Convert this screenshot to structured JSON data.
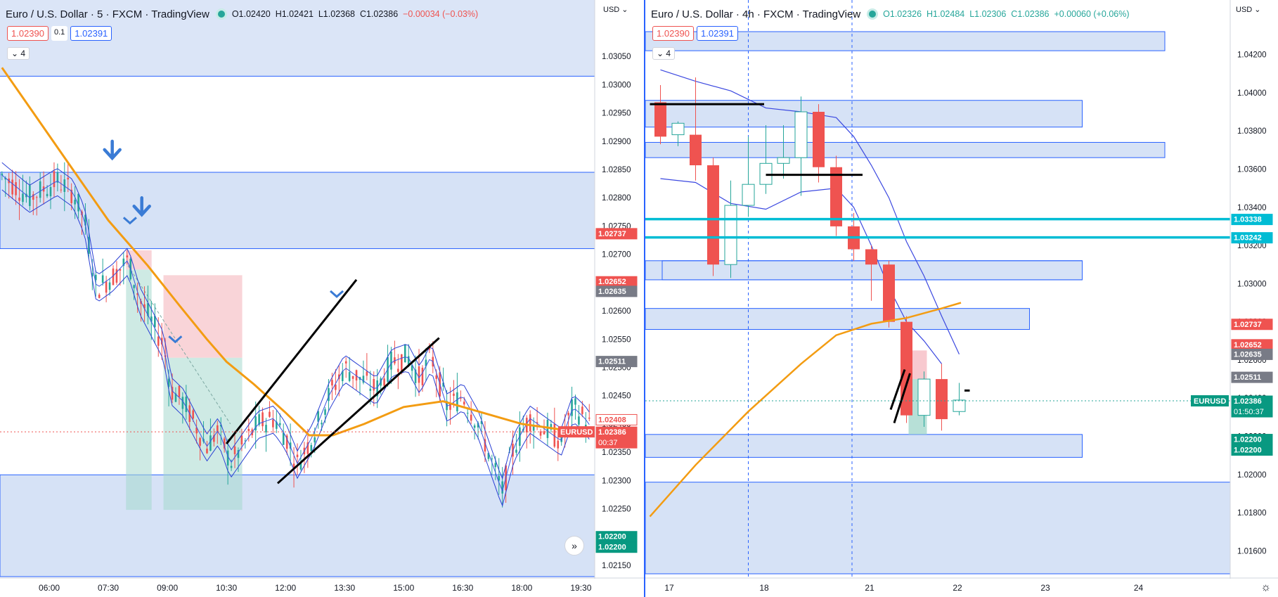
{
  "left": {
    "title": "Euro / U.S. Dollar · 5 · FXCM · TradingView",
    "ohlc": {
      "o": "O1.02420",
      "h": "H1.02421",
      "l": "L1.02368",
      "c": "C1.02386",
      "chg": "−0.00034 (−0.03%)"
    },
    "sell_price": "1.02390",
    "spread": "0.1",
    "buy_price": "1.02391",
    "indicator_count": "4",
    "currency": "USD"
  },
  "right": {
    "title": "Euro / U.S. Dollar · 4h · FXCM · TradingView",
    "ohlc": {
      "o": "O1.02326",
      "h": "H1.02484",
      "l": "L1.02306",
      "c": "C1.02386",
      "chg": "+0.00060 (+0.06%)"
    },
    "sell_price": "1.02390",
    "buy_price": "1.02391",
    "indicator_count": "4",
    "currency": "USD"
  },
  "forward_icon": "double-chevron-right-icon",
  "settings_icon": "gear-icon",
  "chart_data": [
    {
      "type": "candlestick",
      "symbol": "EURUSD",
      "interval": "5",
      "ylim": [
        1.0213,
        1.0309
      ],
      "y_ticks": [
        "1.03050",
        "1.03000",
        "1.02950",
        "1.02900",
        "1.02850",
        "1.02800",
        "1.02750",
        "1.02700",
        "1.02650",
        "1.02600",
        "1.02550",
        "1.02500",
        "1.02450",
        "1.02400",
        "1.02350",
        "1.02300",
        "1.02250",
        "1.02200",
        "1.02150"
      ],
      "x_ticks": [
        "06:00",
        "07:30",
        "09:00",
        "10:30",
        "12:00",
        "13:30",
        "15:00",
        "16:30",
        "18:00",
        "19:30"
      ],
      "x_tick_times": [
        6.0,
        7.5,
        9.0,
        10.5,
        12.0,
        13.5,
        15.0,
        16.5,
        18.0,
        19.5
      ],
      "xlim": [
        4.75,
        19.85
      ],
      "price_close_path": [
        [
          4.8,
          1.0284
        ],
        [
          5.5,
          1.028
        ],
        [
          6.2,
          1.0283
        ],
        [
          6.6,
          1.0281
        ],
        [
          6.9,
          1.0276
        ],
        [
          7.2,
          1.0264
        ],
        [
          7.6,
          1.0266
        ],
        [
          8.0,
          1.0269
        ],
        [
          8.3,
          1.0262
        ],
        [
          8.6,
          1.0258
        ],
        [
          8.9,
          1.0254
        ],
        [
          9.1,
          1.0246
        ],
        [
          9.4,
          1.0244
        ],
        [
          9.7,
          1.024
        ],
        [
          10.0,
          1.0236
        ],
        [
          10.3,
          1.0239
        ],
        [
          10.6,
          1.0233
        ],
        [
          10.9,
          1.0236
        ],
        [
          11.3,
          1.024
        ],
        [
          11.7,
          1.0241
        ],
        [
          12.0,
          1.0238
        ],
        [
          12.3,
          1.0233
        ],
        [
          12.7,
          1.0238
        ],
        [
          13.1,
          1.0245
        ],
        [
          13.5,
          1.025
        ],
        [
          13.9,
          1.0248
        ],
        [
          14.3,
          1.0246
        ],
        [
          14.7,
          1.0251
        ],
        [
          15.1,
          1.0252
        ],
        [
          15.4,
          1.0248
        ],
        [
          15.7,
          1.0252
        ],
        [
          16.1,
          1.0243
        ],
        [
          16.5,
          1.0245
        ],
        [
          16.9,
          1.024
        ],
        [
          17.2,
          1.0234
        ],
        [
          17.5,
          1.0228
        ],
        [
          17.8,
          1.0236
        ],
        [
          18.2,
          1.0241
        ],
        [
          18.6,
          1.0239
        ],
        [
          19.0,
          1.0237
        ],
        [
          19.3,
          1.0243
        ],
        [
          19.6,
          1.0241
        ],
        [
          19.8,
          1.0239
        ]
      ],
      "ema_orange": [
        [
          4.8,
          1.0303
        ],
        [
          5.5,
          1.0296
        ],
        [
          6.5,
          1.0286
        ],
        [
          7.5,
          1.0276
        ],
        [
          8.5,
          1.0268
        ],
        [
          9.3,
          1.0261
        ],
        [
          10.0,
          1.0255
        ],
        [
          10.5,
          1.0251
        ],
        [
          11.2,
          1.0247
        ],
        [
          12.0,
          1.0242
        ],
        [
          12.6,
          1.0238
        ],
        [
          13.2,
          1.0238
        ],
        [
          14.0,
          1.024
        ],
        [
          15.0,
          1.0243
        ],
        [
          16.0,
          1.0244
        ],
        [
          17.0,
          1.0242
        ],
        [
          18.0,
          1.024
        ],
        [
          19.0,
          1.0239
        ],
        [
          19.8,
          1.0239
        ]
      ],
      "zones": [
        {
          "y_top": 1.02845,
          "y_bottom": 1.0271,
          "fill": "#d6e2f6"
        },
        {
          "y_top": 1.0231,
          "y_bottom": 1.0213,
          "fill": "#d6e2f6"
        }
      ],
      "trendlines": [
        {
          "from": [
            10.5,
            1.02365
          ],
          "to": [
            13.8,
            1.02655
          ]
        },
        {
          "from": [
            11.8,
            1.02295
          ],
          "to": [
            15.9,
            1.02552
          ]
        }
      ],
      "position_boxes": [
        {
          "x": [
            7.95,
            8.6
          ],
          "stop": [
            1.02707,
            1.02673
          ],
          "target": [
            1.02673,
            1.02248
          ]
        },
        {
          "x": [
            8.9,
            10.9
          ],
          "stop": [
            1.02663,
            1.02517
          ],
          "target": [
            1.02517,
            1.02248
          ]
        }
      ],
      "markers": [
        {
          "type": "arrow-down",
          "x": 7.6,
          "y": 1.0288
        },
        {
          "type": "arrow-down",
          "x": 8.35,
          "y": 1.0278
        },
        {
          "type": "chevron-down",
          "x": 8.05,
          "y": 1.0276
        },
        {
          "type": "chevron-down",
          "x": 9.2,
          "y": 1.0255
        },
        {
          "type": "chevron-down",
          "x": 13.3,
          "y": 1.0263
        }
      ],
      "price_labels": [
        {
          "value": "1.02737",
          "color": "#ef5350"
        },
        {
          "value": "1.02652",
          "color": "#ef5350"
        },
        {
          "value": "1.02635",
          "color": "#787b86"
        },
        {
          "value": "1.02511",
          "color": "#787b86"
        },
        {
          "value": "1.02408",
          "color": "#ffffff",
          "text_color": "#ef5350",
          "border": "#ef5350"
        },
        {
          "value": "EURUSD",
          "color": "#ef5350",
          "tag": true
        },
        {
          "value": "1.02386",
          "color": "#ef5350",
          "extra": "00:37"
        },
        {
          "value": "1.02200",
          "color": "#089981"
        },
        {
          "value": "1.02200",
          "color": "#089981"
        }
      ]
    },
    {
      "type": "candlestick",
      "symbol": "EURUSD",
      "interval": "4h",
      "ylim": [
        1.0148,
        1.0432
      ],
      "y_ticks": [
        "1.04200",
        "1.04000",
        "1.03800",
        "1.03600",
        "1.03400",
        "1.03200",
        "1.03000",
        "1.02800",
        "1.02600",
        "1.02400",
        "1.02200",
        "1.02000",
        "1.01800",
        "1.01600"
      ],
      "x_ticks": [
        "17",
        "18",
        "21",
        "22",
        "23",
        "24"
      ],
      "candles": [
        {
          "o": 1.0395,
          "h": 1.0404,
          "l": 1.0373,
          "c": 1.0377
        },
        {
          "o": 1.0378,
          "h": 1.0385,
          "l": 1.0372,
          "c": 1.0384
        },
        {
          "o": 1.0378,
          "h": 1.0408,
          "l": 1.0354,
          "c": 1.0362
        },
        {
          "o": 1.0362,
          "h": 1.0366,
          "l": 1.0304,
          "c": 1.031
        },
        {
          "o": 1.031,
          "h": 1.0354,
          "l": 1.0303,
          "c": 1.0341
        },
        {
          "o": 1.0341,
          "h": 1.0377,
          "l": 1.0335,
          "c": 1.0352
        },
        {
          "o": 1.0352,
          "h": 1.0383,
          "l": 1.0347,
          "c": 1.0363
        },
        {
          "o": 1.0363,
          "h": 1.0383,
          "l": 1.0355,
          "c": 1.0366
        },
        {
          "o": 1.0366,
          "h": 1.0398,
          "l": 1.0346,
          "c": 1.039
        },
        {
          "o": 1.039,
          "h": 1.0394,
          "l": 1.0353,
          "c": 1.0361
        },
        {
          "o": 1.0361,
          "h": 1.0367,
          "l": 1.0325,
          "c": 1.033
        },
        {
          "o": 1.033,
          "h": 1.0337,
          "l": 1.0312,
          "c": 1.0318
        },
        {
          "o": 1.0318,
          "h": 1.032,
          "l": 1.0291,
          "c": 1.031
        },
        {
          "o": 1.031,
          "h": 1.0312,
          "l": 1.0277,
          "c": 1.028
        },
        {
          "o": 1.028,
          "h": 1.0283,
          "l": 1.0227,
          "c": 1.0231
        },
        {
          "o": 1.0231,
          "h": 1.0254,
          "l": 1.0225,
          "c": 1.025
        },
        {
          "o": 1.025,
          "h": 1.0258,
          "l": 1.0223,
          "c": 1.0229
        },
        {
          "o": 1.0233,
          "h": 1.0248,
          "l": 1.0231,
          "c": 1.0239
        }
      ],
      "ema_orange": [
        [
          -0.6,
          1.0178
        ],
        [
          2,
          1.0205
        ],
        [
          5,
          1.0233
        ],
        [
          8,
          1.0258
        ],
        [
          10,
          1.0273
        ],
        [
          12,
          1.0279
        ],
        [
          14,
          1.0282
        ],
        [
          16,
          1.0287
        ],
        [
          17.1,
          1.029
        ]
      ],
      "blue_band_upper": [
        [
          0,
          1.0412
        ],
        [
          2,
          1.0406
        ],
        [
          4,
          1.0401
        ],
        [
          6,
          1.0392
        ],
        [
          8,
          1.039
        ],
        [
          10,
          1.0387
        ],
        [
          11,
          1.0377
        ],
        [
          12,
          1.0362
        ],
        [
          13,
          1.0345
        ],
        [
          14,
          1.0322
        ],
        [
          15,
          1.0304
        ],
        [
          16,
          1.0283
        ],
        [
          17,
          1.0263
        ]
      ],
      "blue_band_lower": [
        [
          0,
          1.0355
        ],
        [
          2,
          1.0353
        ],
        [
          4,
          1.0342
        ],
        [
          6,
          1.0339
        ],
        [
          8,
          1.0348
        ],
        [
          10,
          1.035
        ],
        [
          11,
          1.034
        ],
        [
          12,
          1.032
        ],
        [
          13,
          1.0298
        ],
        [
          14,
          1.028
        ],
        [
          15,
          1.027
        ],
        [
          16,
          1.0258
        ]
      ],
      "zones": [
        {
          "y_top": 1.0432,
          "y_bottom": 1.0422,
          "x_end": 28.7
        },
        {
          "y_top": 1.0396,
          "y_bottom": 1.0382,
          "x_end": 24.0
        },
        {
          "y_top": 1.0374,
          "y_bottom": 1.0366,
          "x_end": 28.7
        },
        {
          "y_top": 1.0312,
          "y_bottom": 1.0302,
          "x_end": 24.0
        },
        {
          "y_top": 1.0287,
          "y_bottom": 1.0276,
          "x_end": 21.0
        },
        {
          "y_top": 1.0221,
          "y_bottom": 1.0209,
          "x_end": 24.0
        },
        {
          "y_top": 1.0196,
          "y_bottom": 1.0148,
          "x_end": 32.5
        }
      ],
      "hlines": [
        {
          "y": 1.0394,
          "x": [
            -0.6,
            5.9
          ],
          "color": "#000000"
        },
        {
          "y": 1.0357,
          "x": [
            6.0,
            11.5
          ],
          "color": "#000000"
        },
        {
          "y": 1.03338,
          "color": "#00bcd4"
        },
        {
          "y": 1.03242,
          "color": "#00bcd4"
        }
      ],
      "price_labels": [
        {
          "value": "1.03338",
          "color": "#00bcd4"
        },
        {
          "value": "1.03242",
          "color": "#00bcd4"
        },
        {
          "value": "1.02737",
          "color": "#ef5350"
        },
        {
          "value": "1.02652",
          "color": "#ef5350"
        },
        {
          "value": "1.02635",
          "color": "#787b86"
        },
        {
          "value": "1.02511",
          "color": "#787b86"
        },
        {
          "value": "EURUSD",
          "color": "#089981",
          "tag": true
        },
        {
          "value": "1.02386",
          "color": "#089981",
          "extra": "01:50:37"
        },
        {
          "value": "1.02200",
          "color": "#089981"
        },
        {
          "value": "1.02200",
          "color": "#089981"
        }
      ]
    }
  ]
}
